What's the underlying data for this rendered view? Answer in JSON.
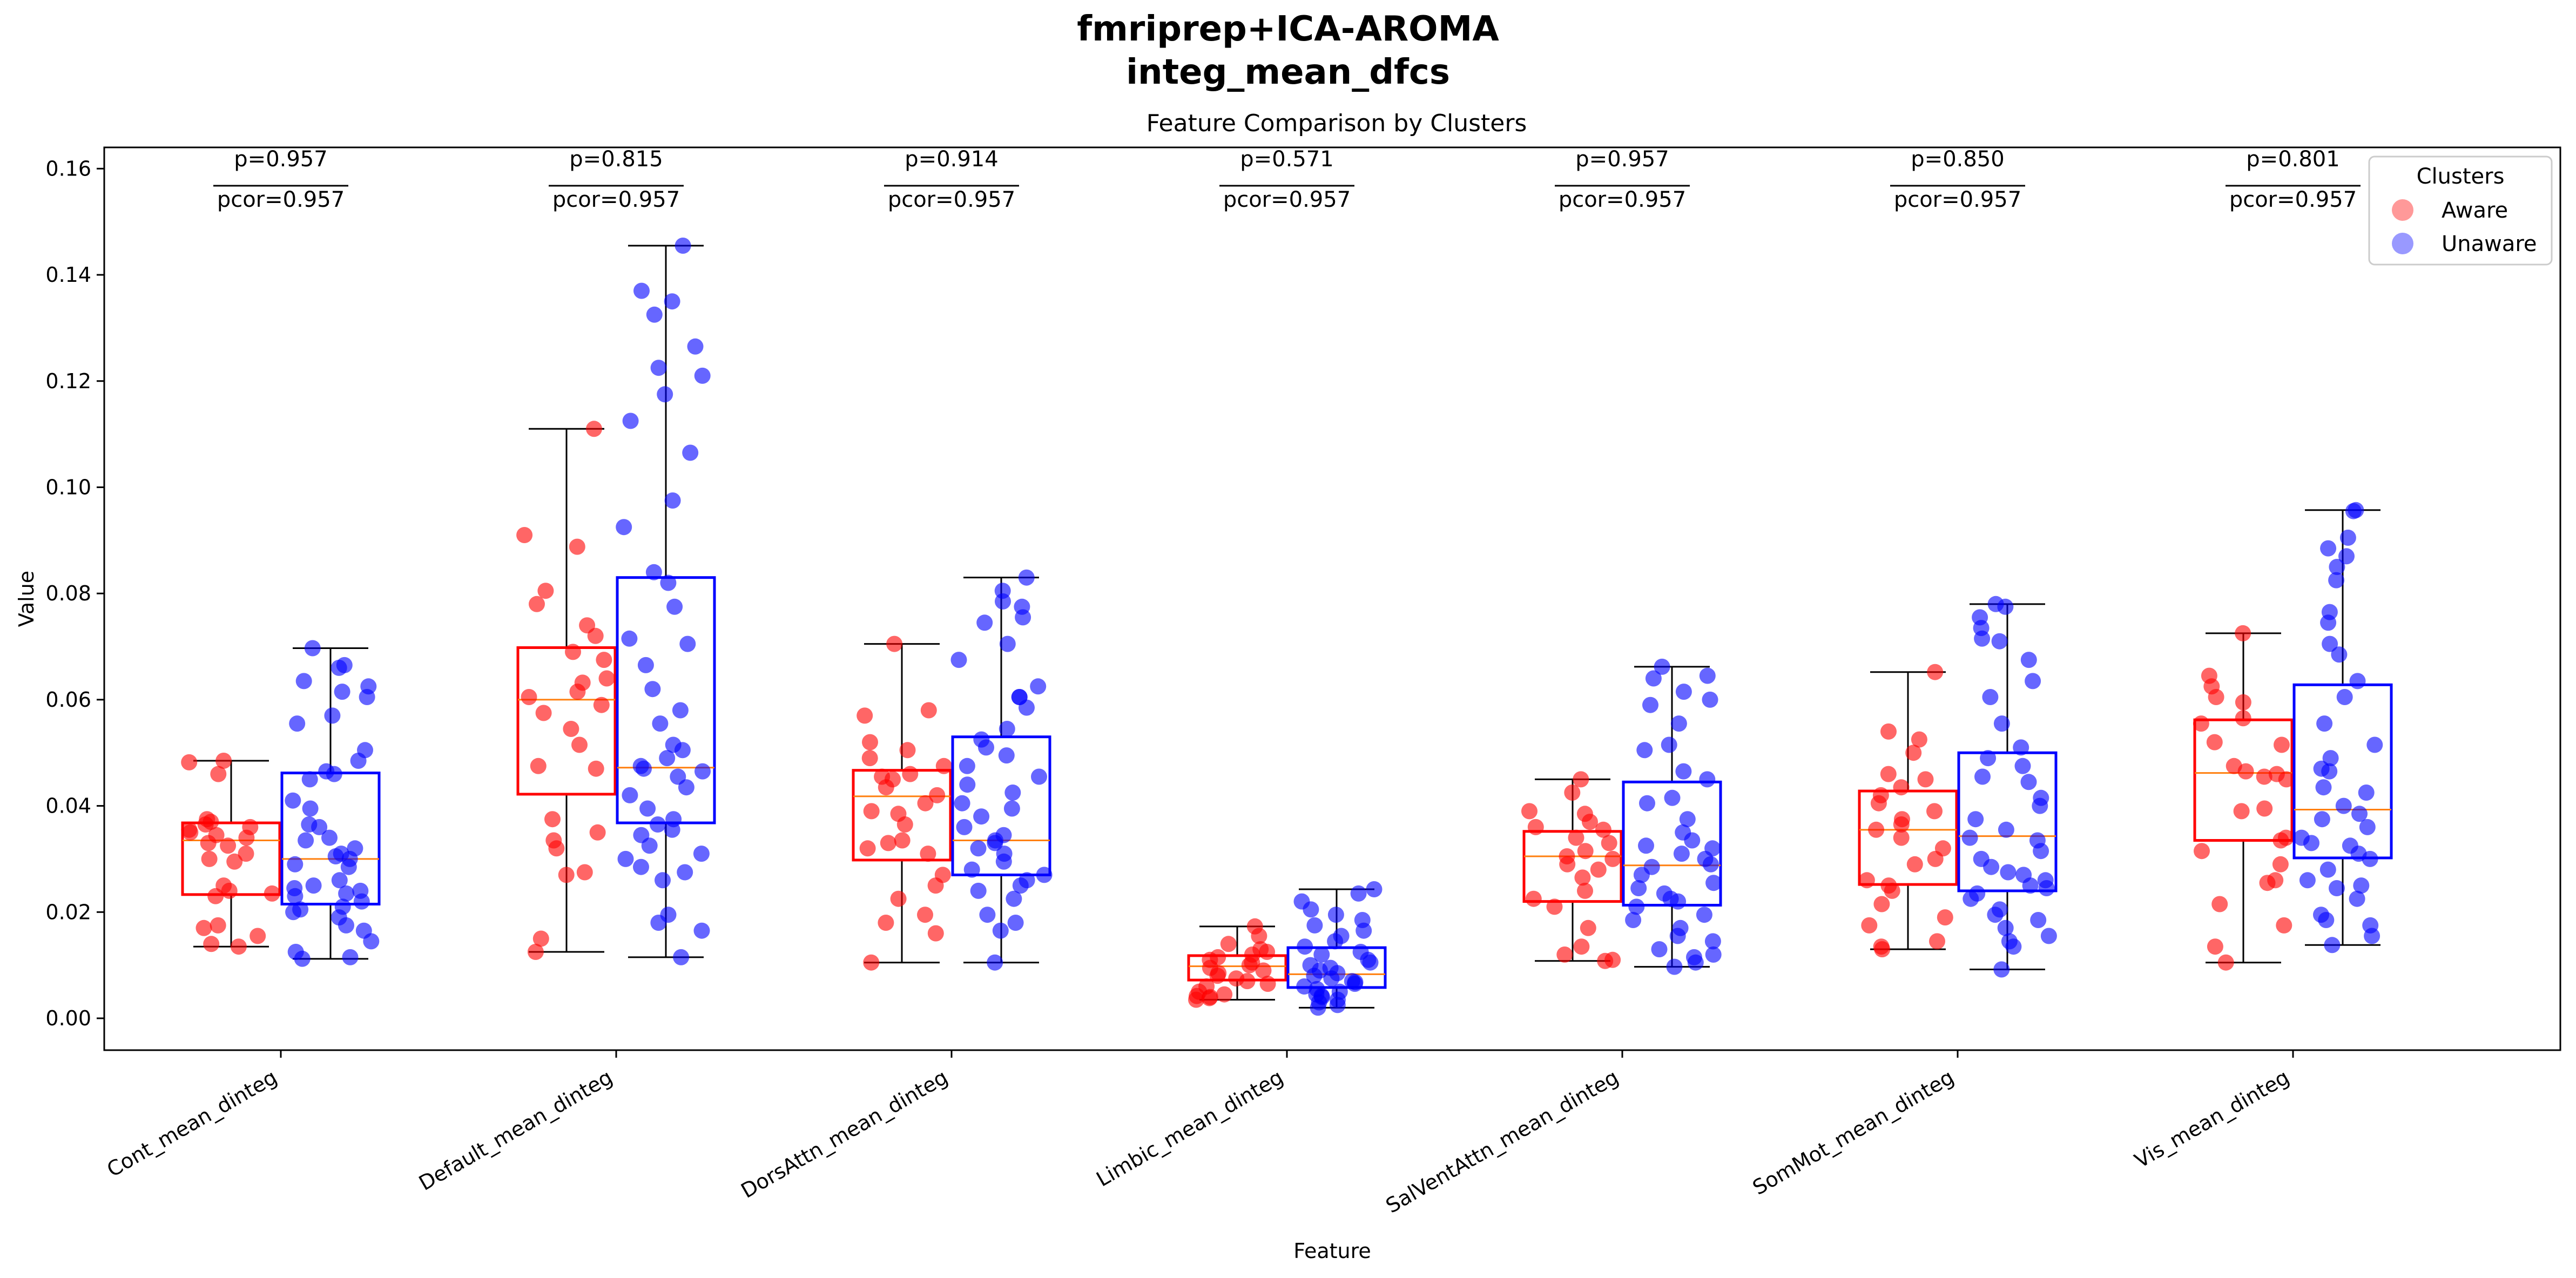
{
  "figure": {
    "title_line1": "fmriprep+ICA-AROMA",
    "title_line2": "integ_mean_dfcs"
  },
  "chart_data": {
    "type": "box",
    "title": "Feature Comparison by Clusters",
    "xlabel": "Feature",
    "ylabel": "Value",
    "ylim": [
      -0.006,
      0.164
    ],
    "yticks": [
      0.0,
      0.02,
      0.04,
      0.06,
      0.08,
      0.1,
      0.12,
      0.14,
      0.16
    ],
    "ytick_labels": [
      "0.00",
      "0.02",
      "0.04",
      "0.06",
      "0.08",
      "0.10",
      "0.12",
      "0.14",
      "0.16"
    ],
    "grid": false,
    "legend": {
      "title": "Clusters",
      "placement": "top-right",
      "entries": [
        "Aware",
        "Unaware"
      ]
    },
    "colors": {
      "Aware": "#ff0000",
      "Unaware": "#0000ff",
      "median": "#ff7f0e"
    },
    "categories": [
      "Cont_mean_dinteg",
      "Default_mean_dinteg",
      "DorsAttn_mean_dinteg",
      "Limbic_mean_dinteg",
      "SalVentAttn_mean_dinteg",
      "SomMot_mean_dinteg",
      "Vis_mean_dinteg"
    ],
    "annotations": [
      {
        "p": "p=0.957",
        "pcor": "pcor=0.957"
      },
      {
        "p": "p=0.815",
        "pcor": "pcor=0.957"
      },
      {
        "p": "p=0.914",
        "pcor": "pcor=0.957"
      },
      {
        "p": "p=0.571",
        "pcor": "pcor=0.957"
      },
      {
        "p": "p=0.957",
        "pcor": "pcor=0.957"
      },
      {
        "p": "p=0.850",
        "pcor": "pcor=0.957"
      },
      {
        "p": "p=0.801",
        "pcor": "pcor=0.957"
      }
    ],
    "series": [
      {
        "name": "Aware",
        "boxes": [
          {
            "whislo": 0.0135,
            "q1": 0.0233,
            "med": 0.0335,
            "q3": 0.0368,
            "whishi": 0.0485,
            "points": [
              0.0485,
              0.0482,
              0.046,
              0.0375,
              0.037,
              0.0365,
              0.036,
              0.0355,
              0.035,
              0.0345,
              0.034,
              0.033,
              0.0325,
              0.031,
              0.03,
              0.0295,
              0.025,
              0.024,
              0.0235,
              0.023,
              0.0175,
              0.017,
              0.0155,
              0.014,
              0.0135
            ]
          },
          {
            "whislo": 0.0125,
            "q1": 0.0422,
            "med": 0.06,
            "q3": 0.0698,
            "whishi": 0.111,
            "points": [
              0.111,
              0.091,
              0.0888,
              0.0805,
              0.078,
              0.074,
              0.072,
              0.069,
              0.0675,
              0.064,
              0.0632,
              0.0615,
              0.0605,
              0.059,
              0.0575,
              0.0545,
              0.0515,
              0.0475,
              0.047,
              0.0375,
              0.035,
              0.0335,
              0.032,
              0.0275,
              0.027,
              0.015,
              0.0125
            ]
          },
          {
            "whislo": 0.0105,
            "q1": 0.0298,
            "med": 0.0418,
            "q3": 0.0467,
            "whishi": 0.0705,
            "points": [
              0.0705,
              0.058,
              0.057,
              0.052,
              0.0505,
              0.049,
              0.0475,
              0.046,
              0.0455,
              0.045,
              0.0435,
              0.042,
              0.0405,
              0.039,
              0.0385,
              0.0365,
              0.0335,
              0.033,
              0.032,
              0.031,
              0.027,
              0.025,
              0.0225,
              0.0195,
              0.018,
              0.016,
              0.0105
            ]
          },
          {
            "whislo": 0.0035,
            "q1": 0.0072,
            "med": 0.0098,
            "q3": 0.0118,
            "whishi": 0.0173,
            "points": [
              0.0173,
              0.0155,
              0.014,
              0.013,
              0.0125,
              0.012,
              0.0115,
              0.011,
              0.0105,
              0.01,
              0.0095,
              0.009,
              0.0085,
              0.008,
              0.0075,
              0.007,
              0.0065,
              0.006,
              0.005,
              0.0045,
              0.004,
              0.0035,
              0.0038,
              0.0042
            ]
          },
          {
            "whislo": 0.0108,
            "q1": 0.022,
            "med": 0.0305,
            "q3": 0.0352,
            "whishi": 0.045,
            "points": [
              0.045,
              0.0425,
              0.039,
              0.0385,
              0.037,
              0.036,
              0.0355,
              0.034,
              0.033,
              0.0315,
              0.0305,
              0.03,
              0.029,
              0.028,
              0.0265,
              0.024,
              0.0225,
              0.021,
              0.017,
              0.0135,
              0.012,
              0.011,
              0.0108
            ]
          },
          {
            "whislo": 0.013,
            "q1": 0.0252,
            "med": 0.0355,
            "q3": 0.0428,
            "whishi": 0.0652,
            "points": [
              0.0652,
              0.054,
              0.0525,
              0.05,
              0.046,
              0.045,
              0.0435,
              0.042,
              0.0405,
              0.039,
              0.0375,
              0.0365,
              0.0355,
              0.034,
              0.032,
              0.03,
              0.029,
              0.026,
              0.025,
              0.024,
              0.0215,
              0.019,
              0.0175,
              0.0145,
              0.0135,
              0.013
            ]
          },
          {
            "whislo": 0.0105,
            "q1": 0.0335,
            "med": 0.0462,
            "q3": 0.0562,
            "whishi": 0.0725,
            "points": [
              0.0725,
              0.0645,
              0.0625,
              0.0605,
              0.0595,
              0.0565,
              0.0555,
              0.052,
              0.0515,
              0.0475,
              0.0465,
              0.046,
              0.0455,
              0.045,
              0.0395,
              0.039,
              0.034,
              0.0335,
              0.0315,
              0.029,
              0.026,
              0.0255,
              0.0215,
              0.0175,
              0.0135,
              0.0105
            ]
          }
        ]
      },
      {
        "name": "Unaware",
        "boxes": [
          {
            "whislo": 0.0112,
            "q1": 0.0215,
            "med": 0.03,
            "q3": 0.0462,
            "whishi": 0.0697,
            "points": [
              0.0697,
              0.0665,
              0.066,
              0.0635,
              0.0625,
              0.0615,
              0.0605,
              0.057,
              0.0555,
              0.0505,
              0.0485,
              0.0465,
              0.046,
              0.045,
              0.041,
              0.0395,
              0.0365,
              0.036,
              0.034,
              0.0335,
              0.032,
              0.031,
              0.0305,
              0.03,
              0.029,
              0.0285,
              0.026,
              0.025,
              0.0245,
              0.024,
              0.0235,
              0.023,
              0.022,
              0.021,
              0.0205,
              0.02,
              0.019,
              0.0175,
              0.0165,
              0.0145,
              0.0125,
              0.0115,
              0.0112
            ]
          },
          {
            "whislo": 0.0115,
            "q1": 0.0368,
            "med": 0.0472,
            "q3": 0.083,
            "whishi": 0.1455,
            "points": [
              0.1455,
              0.137,
              0.135,
              0.1325,
              0.1265,
              0.1225,
              0.121,
              0.1175,
              0.1125,
              0.1065,
              0.0975,
              0.0925,
              0.084,
              0.082,
              0.0775,
              0.0715,
              0.0705,
              0.0665,
              0.062,
              0.058,
              0.0555,
              0.0515,
              0.0505,
              0.049,
              0.0475,
              0.047,
              0.0465,
              0.0455,
              0.0435,
              0.042,
              0.0395,
              0.0375,
              0.0365,
              0.0355,
              0.0345,
              0.0325,
              0.031,
              0.03,
              0.0285,
              0.0275,
              0.026,
              0.0195,
              0.018,
              0.0165,
              0.0115
            ]
          },
          {
            "whislo": 0.0105,
            "q1": 0.027,
            "med": 0.0335,
            "q3": 0.053,
            "whishi": 0.083,
            "points": [
              0.083,
              0.0805,
              0.0785,
              0.0775,
              0.0755,
              0.0745,
              0.0705,
              0.0675,
              0.0625,
              0.0605,
              0.0605,
              0.0585,
              0.0545,
              0.0525,
              0.051,
              0.0495,
              0.0475,
              0.0455,
              0.044,
              0.0425,
              0.0405,
              0.0395,
              0.038,
              0.036,
              0.0345,
              0.0335,
              0.033,
              0.032,
              0.031,
              0.0295,
              0.028,
              0.027,
              0.026,
              0.025,
              0.024,
              0.0225,
              0.0195,
              0.018,
              0.0165,
              0.0105
            ]
          },
          {
            "whislo": 0.002,
            "q1": 0.0058,
            "med": 0.0083,
            "q3": 0.0133,
            "whishi": 0.0243,
            "points": [
              0.0243,
              0.0235,
              0.022,
              0.0205,
              0.0195,
              0.0185,
              0.0175,
              0.0165,
              0.0155,
              0.0145,
              0.0135,
              0.0125,
              0.012,
              0.011,
              0.0105,
              0.01,
              0.0095,
              0.009,
              0.0085,
              0.008,
              0.0075,
              0.007,
              0.0068,
              0.0065,
              0.006,
              0.0055,
              0.005,
              0.0045,
              0.0042,
              0.004,
              0.0035,
              0.003,
              0.0025,
              0.002
            ]
          },
          {
            "whislo": 0.0097,
            "q1": 0.0213,
            "med": 0.0288,
            "q3": 0.0445,
            "whishi": 0.0662,
            "points": [
              0.0662,
              0.0645,
              0.064,
              0.0615,
              0.06,
              0.059,
              0.0555,
              0.0515,
              0.0505,
              0.0465,
              0.045,
              0.0415,
              0.0405,
              0.0375,
              0.035,
              0.0335,
              0.0325,
              0.032,
              0.031,
              0.03,
              0.029,
              0.0285,
              0.027,
              0.0255,
              0.0245,
              0.0235,
              0.0225,
              0.022,
              0.021,
              0.0195,
              0.0185,
              0.017,
              0.0155,
              0.0145,
              0.013,
              0.012,
              0.0115,
              0.0105,
              0.0097
            ]
          },
          {
            "whislo": 0.0092,
            "q1": 0.024,
            "med": 0.0343,
            "q3": 0.05,
            "whishi": 0.078,
            "points": [
              0.078,
              0.0775,
              0.0755,
              0.0735,
              0.0715,
              0.071,
              0.0675,
              0.0635,
              0.0605,
              0.0555,
              0.051,
              0.049,
              0.0475,
              0.0455,
              0.0445,
              0.0415,
              0.04,
              0.0375,
              0.0355,
              0.034,
              0.0335,
              0.0315,
              0.03,
              0.0285,
              0.0275,
              0.027,
              0.026,
              0.025,
              0.0245,
              0.0235,
              0.0225,
              0.0205,
              0.0195,
              0.0185,
              0.017,
              0.0155,
              0.0145,
              0.0135,
              0.0092
            ]
          },
          {
            "whislo": 0.0138,
            "q1": 0.0302,
            "med": 0.0393,
            "q3": 0.0628,
            "whishi": 0.0957,
            "points": [
              0.0957,
              0.0955,
              0.0905,
              0.0885,
              0.087,
              0.085,
              0.0825,
              0.0765,
              0.0745,
              0.0705,
              0.0685,
              0.0635,
              0.0605,
              0.0555,
              0.0515,
              0.049,
              0.047,
              0.0465,
              0.0435,
              0.0425,
              0.04,
              0.0385,
              0.0375,
              0.036,
              0.034,
              0.033,
              0.0325,
              0.031,
              0.03,
              0.028,
              0.026,
              0.025,
              0.0245,
              0.0225,
              0.0195,
              0.0185,
              0.0175,
              0.0155,
              0.0138
            ]
          }
        ]
      }
    ]
  }
}
